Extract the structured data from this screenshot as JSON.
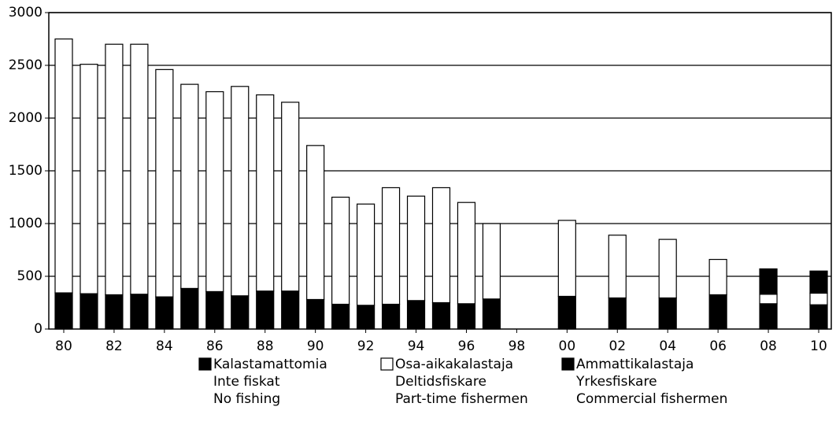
{
  "chart_data": {
    "type": "stacked_bar",
    "categories": [
      "80",
      null,
      "82",
      null,
      "84",
      null,
      "86",
      null,
      "88",
      null,
      "90",
      null,
      "92",
      null,
      "94",
      null,
      "96",
      null,
      "98",
      null,
      "00",
      null,
      "02",
      null,
      "04",
      null,
      "06",
      null,
      "08",
      null,
      "10"
    ],
    "series": [
      {
        "name": [
          "Kalastamattomia",
          "Inte fiskat",
          "No fishing"
        ],
        "color": "#000000",
        "values": [
          343,
          335,
          325,
          330,
          305,
          385,
          355,
          315,
          360,
          360,
          280,
          235,
          225,
          235,
          270,
          250,
          240,
          285,
          null,
          null,
          310,
          null,
          295,
          null,
          295,
          null,
          325,
          null,
          240,
          null,
          230
        ]
      },
      {
        "name": [
          "Osa-aikakalastaja",
          "Deltidsfiskare",
          "Part-time fishermen"
        ],
        "color": "#ffffff",
        "values": [
          2407,
          2175,
          2375,
          2370,
          2155,
          1935,
          1895,
          1985,
          1860,
          1790,
          1460,
          1015,
          960,
          1105,
          990,
          1090,
          960,
          715,
          null,
          null,
          720,
          null,
          595,
          null,
          555,
          null,
          335,
          null,
          90,
          null,
          110
        ]
      },
      {
        "name": [
          "Ammattikalastaja",
          "Yrkesfiskare",
          "Commercial fishermen"
        ],
        "color": "#000000",
        "values": [
          null,
          null,
          null,
          null,
          null,
          null,
          null,
          null,
          null,
          null,
          null,
          null,
          null,
          null,
          null,
          null,
          null,
          null,
          null,
          null,
          null,
          null,
          null,
          null,
          null,
          null,
          null,
          null,
          240,
          null,
          210
        ]
      }
    ],
    "ylim": [
      0,
      3000
    ],
    "yticks": [
      0,
      500,
      1000,
      1500,
      2000,
      2500,
      3000
    ],
    "grid": true
  }
}
